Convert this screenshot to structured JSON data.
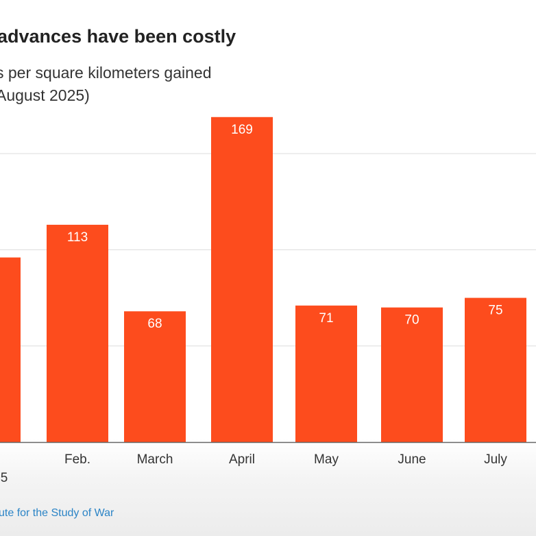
{
  "header": {
    "title": "advances have been costly",
    "subtitle_line1": "s per square kilometers gained",
    "subtitle_line2": "August 2025)"
  },
  "footer": {
    "source": "ute for the Study of War"
  },
  "colors": {
    "bar": "#fd4c1d",
    "grid": "#dcdcdc",
    "axis": "#666666",
    "source": "#2b84c6"
  },
  "chart_data": {
    "type": "bar",
    "categories": [
      ".",
      "Feb.",
      "March",
      "April",
      "May",
      "June",
      "July"
    ],
    "category_sublabels": [
      "5",
      "",
      "",
      "",
      "",
      "",
      ""
    ],
    "values": [
      96,
      113,
      68,
      169,
      71,
      70,
      75
    ],
    "data_labels": [
      "",
      "113",
      "68",
      "169",
      "71",
      "70",
      "75"
    ],
    "ylim": [
      0,
      200
    ],
    "grid": true,
    "title": "advances have been costly",
    "xlabel": "",
    "ylabel": ""
  }
}
